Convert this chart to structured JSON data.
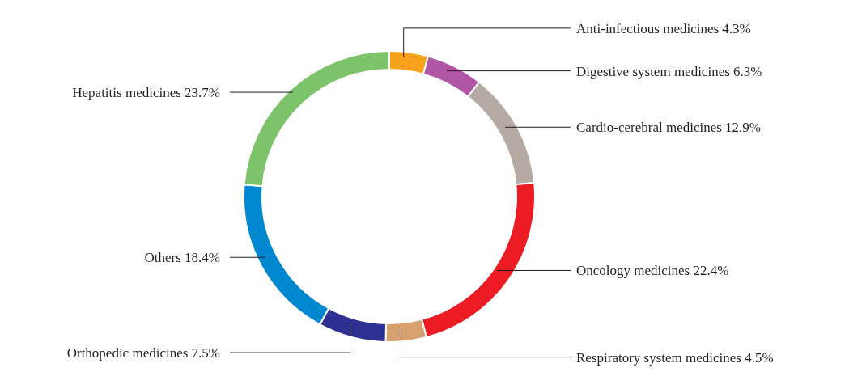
{
  "chart_data": {
    "type": "donut",
    "categories": [
      "Anti-infectious medicines",
      "Digestive system medicines",
      "Cardio-cerebral medicines",
      "Oncology medicines",
      "Respiratory system medicines",
      "Orthopedic medicines",
      "Others",
      "Hepatitis medicines"
    ],
    "values": [
      4.3,
      6.3,
      12.9,
      22.4,
      4.5,
      7.5,
      18.4,
      23.7
    ],
    "value_labels": [
      "4.3%",
      "6.3%",
      "12.9%",
      "22.4%",
      "4.5%",
      "7.5%",
      "18.4%",
      "23.7%"
    ],
    "colors": [
      "#f7a11a",
      "#b156a5",
      "#b5a9a4",
      "#ed1c24",
      "#d6a06f",
      "#2e3192",
      "#0088cf",
      "#7cc36a"
    ]
  }
}
